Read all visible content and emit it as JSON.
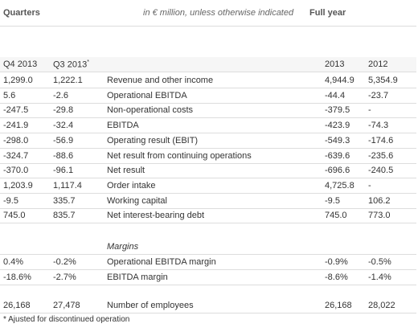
{
  "header": {
    "quarters": "Quarters",
    "unit_note": "in € million, unless otherwise indicated",
    "full_year": "Full year"
  },
  "columns": {
    "q4": "Q4 2013",
    "q3": "Q3 2013",
    "q3_note": "*",
    "fy2013": "2013",
    "fy2012": "2012"
  },
  "rows": [
    [
      "1,299.0",
      "1,222.1",
      "Revenue and other income",
      "4,944.9",
      "5,354.9"
    ],
    [
      "5.6",
      "-2.6",
      "Operational EBITDA",
      "-44.4",
      "-23.7"
    ],
    [
      "-247.5",
      "-29.8",
      "Non-operational costs",
      "-379.5",
      "-"
    ],
    [
      "-241.9",
      "-32.4",
      "EBITDA",
      "-423.9",
      "-74.3"
    ],
    [
      "-298.0",
      "-56.9",
      "Operating result (EBIT)",
      "-549.3",
      "-174.6"
    ],
    [
      "-324.7",
      "-88.6",
      "Net result from continuing operations",
      "-639.6",
      "-235.6"
    ],
    [
      "-370.0",
      "-96.1",
      "Net result",
      "-696.6",
      "-240.5"
    ],
    [
      "1,203.9",
      "1,117.4",
      "Order intake",
      "4,725.8",
      "-"
    ],
    [
      "-9.5",
      "335.7",
      "Working capital",
      "-9.5",
      "106.2"
    ],
    [
      "745.0",
      "835.7",
      "Net interest-bearing debt",
      "745.0",
      "773.0"
    ]
  ],
  "margins_title": "Margins",
  "margin_rows": [
    [
      "0.4%",
      "-0.2%",
      "Operational EBITDA margin",
      "-0.9%",
      "-0.5%"
    ],
    [
      "-18.6%",
      "-2.7%",
      "EBITDA margin",
      "-8.6%",
      "-1.4%"
    ]
  ],
  "employee_row": [
    "26,168",
    "27,478",
    "Number of employees",
    "26,168",
    "28,022"
  ],
  "footnote": "* Ajusted for discontinued operation"
}
